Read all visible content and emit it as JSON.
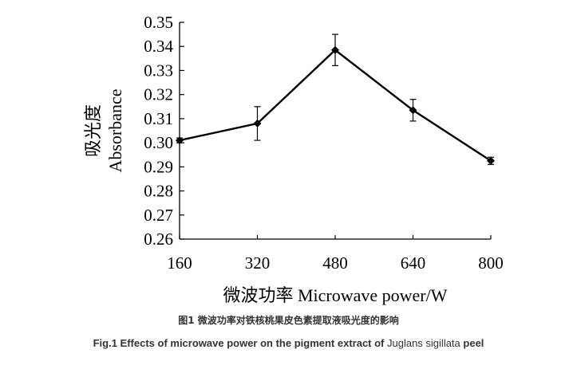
{
  "chart_data": {
    "type": "line",
    "x": [
      160,
      320,
      480,
      640,
      800
    ],
    "series": [
      {
        "values": [
          0.301,
          0.308,
          0.3385,
          0.3135,
          0.2925
        ],
        "error": [
          0.001,
          0.007,
          0.0065,
          0.0045,
          0.0015
        ]
      }
    ],
    "xlabel": "微波功率 Microwave power/W",
    "ylabel_cn": "吸光度",
    "ylabel_en": "Absorbance",
    "xlim": [
      160,
      800
    ],
    "ylim": [
      0.26,
      0.35
    ],
    "xticks": [
      "160",
      "320",
      "480",
      "640",
      "800"
    ],
    "yticks": [
      "0.26",
      "0.27",
      "0.28",
      "0.29",
      "0.30",
      "0.31",
      "0.32",
      "0.33",
      "0.34",
      "0.35"
    ],
    "grid": false,
    "colors": {
      "line": "#000000"
    }
  },
  "caption": {
    "cn": "图1 微波功率对铁核桃果皮色素提取液吸光度的影响",
    "en_prefix": "Fig.1 Effects of microwave power on the pigment extract of ",
    "en_species": "Juglans sigillata",
    "en_suffix": " peel"
  }
}
